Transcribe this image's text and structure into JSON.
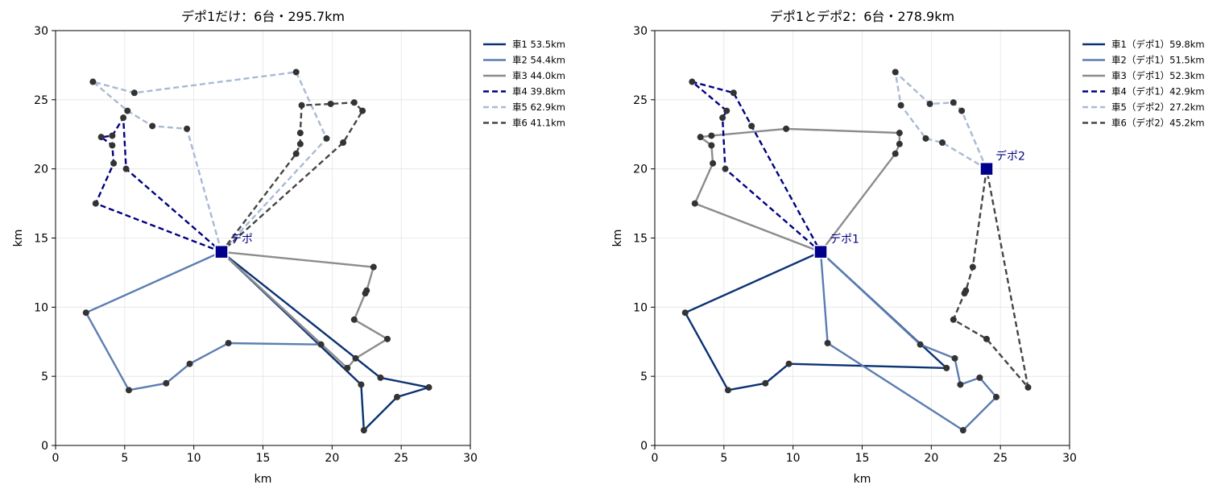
{
  "colors": {
    "navy": "#0b3272",
    "steel": "#5b7db1",
    "gray": "#8c8c8c",
    "darknavy": "#000080",
    "lightblue": "#a9b9d4",
    "charcoal": "#454545",
    "point": "#333333",
    "depot": "#00008b"
  },
  "chart_data": [
    {
      "type": "line",
      "title": "デポ1だけ：6台・295.7km",
      "xlabel": "km",
      "ylabel": "km",
      "xlim": [
        0,
        30
      ],
      "ylim": [
        0,
        30
      ],
      "xticks": [
        "0",
        "5",
        "10",
        "15",
        "20",
        "25",
        "30"
      ],
      "yticks": [
        "0",
        "5",
        "10",
        "15",
        "20",
        "25",
        "30"
      ],
      "grid": true,
      "legend_position": "outside-upper-right",
      "depots": [
        {
          "label": "デポ",
          "x": 12,
          "y": 14
        }
      ],
      "customers": [
        [
          2.7,
          26.3
        ],
        [
          5.7,
          25.5
        ],
        [
          5.2,
          24.2
        ],
        [
          4.9,
          23.7
        ],
        [
          3.3,
          22.3
        ],
        [
          4.1,
          22.4
        ],
        [
          4.1,
          21.7
        ],
        [
          4.2,
          20.4
        ],
        [
          5.1,
          20.0
        ],
        [
          2.9,
          17.5
        ],
        [
          7.0,
          23.1
        ],
        [
          9.5,
          22.9
        ],
        [
          17.4,
          27.0
        ],
        [
          17.8,
          24.6
        ],
        [
          19.9,
          24.7
        ],
        [
          21.6,
          24.8
        ],
        [
          22.2,
          24.2
        ],
        [
          17.7,
          22.6
        ],
        [
          17.7,
          21.8
        ],
        [
          17.4,
          21.1
        ],
        [
          19.6,
          22.2
        ],
        [
          20.8,
          21.9
        ],
        [
          2.2,
          9.6
        ],
        [
          5.3,
          4.0
        ],
        [
          8.0,
          4.5
        ],
        [
          9.7,
          5.9
        ],
        [
          12.5,
          7.4
        ],
        [
          19.2,
          7.3
        ],
        [
          23.0,
          12.9
        ],
        [
          22.5,
          11.2
        ],
        [
          22.4,
          11.0
        ],
        [
          21.6,
          9.1
        ],
        [
          24.0,
          7.7
        ],
        [
          21.7,
          6.3
        ],
        [
          21.1,
          5.6
        ],
        [
          23.5,
          4.9
        ],
        [
          22.1,
          4.4
        ],
        [
          27.0,
          4.2
        ],
        [
          24.7,
          3.5
        ],
        [
          22.3,
          1.1
        ]
      ],
      "series": [
        {
          "name": "車1 53.5km",
          "color_key": "navy",
          "dash": false,
          "points": [
            [
              12,
              14
            ],
            [
              23.5,
              4.9
            ],
            [
              27.0,
              4.2
            ],
            [
              24.7,
              3.5
            ],
            [
              22.3,
              1.1
            ],
            [
              22.1,
              4.4
            ],
            [
              12,
              14
            ]
          ]
        },
        {
          "name": "車2 54.4km",
          "color_key": "steel",
          "dash": false,
          "points": [
            [
              12,
              14
            ],
            [
              2.2,
              9.6
            ],
            [
              5.3,
              4.0
            ],
            [
              8.0,
              4.5
            ],
            [
              9.7,
              5.9
            ],
            [
              12.5,
              7.4
            ],
            [
              19.2,
              7.3
            ],
            [
              12,
              14
            ]
          ]
        },
        {
          "name": "車3 44.0km",
          "color_key": "gray",
          "dash": false,
          "points": [
            [
              12,
              14
            ],
            [
              23.0,
              12.9
            ],
            [
              22.5,
              11.2
            ],
            [
              22.4,
              11.0
            ],
            [
              21.6,
              9.1
            ],
            [
              24.0,
              7.7
            ],
            [
              21.7,
              6.3
            ],
            [
              21.1,
              5.6
            ],
            [
              12,
              14
            ]
          ]
        },
        {
          "name": "車4 39.8km",
          "color_key": "darknavy",
          "dash": true,
          "points": [
            [
              12,
              14
            ],
            [
              2.9,
              17.5
            ],
            [
              4.2,
              20.4
            ],
            [
              4.1,
              21.7
            ],
            [
              3.3,
              22.3
            ],
            [
              4.1,
              22.4
            ],
            [
              4.9,
              23.7
            ],
            [
              5.1,
              20.0
            ],
            [
              12,
              14
            ]
          ]
        },
        {
          "name": "車5 62.9km",
          "color_key": "lightblue",
          "dash": true,
          "points": [
            [
              12,
              14
            ],
            [
              9.5,
              22.9
            ],
            [
              7.0,
              23.1
            ],
            [
              5.2,
              24.2
            ],
            [
              2.7,
              26.3
            ],
            [
              5.7,
              25.5
            ],
            [
              17.4,
              27.0
            ],
            [
              19.6,
              22.2
            ],
            [
              12,
              14
            ]
          ]
        },
        {
          "name": "車6 41.1km",
          "color_key": "charcoal",
          "dash": true,
          "points": [
            [
              12,
              14
            ],
            [
              17.4,
              21.1
            ],
            [
              17.7,
              21.8
            ],
            [
              17.7,
              22.6
            ],
            [
              17.8,
              24.6
            ],
            [
              19.9,
              24.7
            ],
            [
              21.6,
              24.8
            ],
            [
              22.2,
              24.2
            ],
            [
              20.8,
              21.9
            ],
            [
              12,
              14
            ]
          ]
        }
      ]
    },
    {
      "type": "line",
      "title": "デポ1とデポ2：6台・278.9km",
      "xlabel": "km",
      "ylabel": "km",
      "xlim": [
        0,
        30
      ],
      "ylim": [
        0,
        30
      ],
      "xticks": [
        "0",
        "5",
        "10",
        "15",
        "20",
        "25",
        "30"
      ],
      "yticks": [
        "0",
        "5",
        "10",
        "15",
        "20",
        "25",
        "30"
      ],
      "grid": true,
      "legend_position": "outside-upper-right",
      "depots": [
        {
          "label": "デポ1",
          "x": 12,
          "y": 14
        },
        {
          "label": "デポ2",
          "x": 24,
          "y": 20
        }
      ],
      "customers": [
        [
          2.7,
          26.3
        ],
        [
          5.7,
          25.5
        ],
        [
          5.2,
          24.2
        ],
        [
          4.9,
          23.7
        ],
        [
          3.3,
          22.3
        ],
        [
          4.1,
          22.4
        ],
        [
          4.1,
          21.7
        ],
        [
          4.2,
          20.4
        ],
        [
          5.1,
          20.0
        ],
        [
          2.9,
          17.5
        ],
        [
          7.0,
          23.1
        ],
        [
          9.5,
          22.9
        ],
        [
          17.4,
          27.0
        ],
        [
          17.8,
          24.6
        ],
        [
          19.9,
          24.7
        ],
        [
          21.6,
          24.8
        ],
        [
          22.2,
          24.2
        ],
        [
          17.7,
          22.6
        ],
        [
          17.7,
          21.8
        ],
        [
          17.4,
          21.1
        ],
        [
          19.6,
          22.2
        ],
        [
          20.8,
          21.9
        ],
        [
          2.2,
          9.6
        ],
        [
          5.3,
          4.0
        ],
        [
          8.0,
          4.5
        ],
        [
          9.7,
          5.9
        ],
        [
          12.5,
          7.4
        ],
        [
          19.2,
          7.3
        ],
        [
          23.0,
          12.9
        ],
        [
          22.5,
          11.2
        ],
        [
          22.4,
          11.0
        ],
        [
          21.6,
          9.1
        ],
        [
          24.0,
          7.7
        ],
        [
          21.7,
          6.3
        ],
        [
          21.1,
          5.6
        ],
        [
          23.5,
          4.9
        ],
        [
          22.1,
          4.4
        ],
        [
          27.0,
          4.2
        ],
        [
          24.7,
          3.5
        ],
        [
          22.3,
          1.1
        ]
      ],
      "series": [
        {
          "name": "車1（デポ1）59.8km",
          "color_key": "navy",
          "dash": false,
          "points": [
            [
              12,
              14
            ],
            [
              2.2,
              9.6
            ],
            [
              5.3,
              4.0
            ],
            [
              8.0,
              4.5
            ],
            [
              9.7,
              5.9
            ],
            [
              21.1,
              5.6
            ],
            [
              12,
              14
            ]
          ]
        },
        {
          "name": "車2（デポ1）51.5km",
          "color_key": "steel",
          "dash": false,
          "points": [
            [
              12,
              14
            ],
            [
              12.5,
              7.4
            ],
            [
              22.3,
              1.1
            ],
            [
              24.7,
              3.5
            ],
            [
              23.5,
              4.9
            ],
            [
              22.1,
              4.4
            ],
            [
              21.7,
              6.3
            ],
            [
              19.2,
              7.3
            ],
            [
              12,
              14
            ]
          ]
        },
        {
          "name": "車3（デポ1）52.3km",
          "color_key": "gray",
          "dash": false,
          "points": [
            [
              12,
              14
            ],
            [
              2.9,
              17.5
            ],
            [
              4.2,
              20.4
            ],
            [
              4.1,
              21.7
            ],
            [
              3.3,
              22.3
            ],
            [
              4.1,
              22.4
            ],
            [
              9.5,
              22.9
            ],
            [
              17.7,
              22.6
            ],
            [
              17.7,
              21.8
            ],
            [
              17.4,
              21.1
            ],
            [
              12,
              14
            ]
          ]
        },
        {
          "name": "車4（デポ1）42.9km",
          "color_key": "darknavy",
          "dash": true,
          "points": [
            [
              12,
              14
            ],
            [
              5.1,
              20.0
            ],
            [
              4.9,
              23.7
            ],
            [
              5.2,
              24.2
            ],
            [
              2.7,
              26.3
            ],
            [
              5.7,
              25.5
            ],
            [
              7.0,
              23.1
            ],
            [
              12,
              14
            ]
          ]
        },
        {
          "name": "車5（デポ2）27.2km",
          "color_key": "lightblue",
          "dash": true,
          "points": [
            [
              24,
              20
            ],
            [
              20.8,
              21.9
            ],
            [
              19.6,
              22.2
            ],
            [
              17.8,
              24.6
            ],
            [
              17.4,
              27.0
            ],
            [
              19.9,
              24.7
            ],
            [
              21.6,
              24.8
            ],
            [
              22.2,
              24.2
            ],
            [
              24,
              20
            ]
          ]
        },
        {
          "name": "車6（デポ2）45.2km",
          "color_key": "charcoal",
          "dash": true,
          "points": [
            [
              24,
              20
            ],
            [
              23.0,
              12.9
            ],
            [
              22.5,
              11.2
            ],
            [
              22.4,
              11.0
            ],
            [
              21.6,
              9.1
            ],
            [
              24.0,
              7.7
            ],
            [
              27.0,
              4.2
            ],
            [
              24,
              20
            ]
          ]
        }
      ]
    }
  ]
}
